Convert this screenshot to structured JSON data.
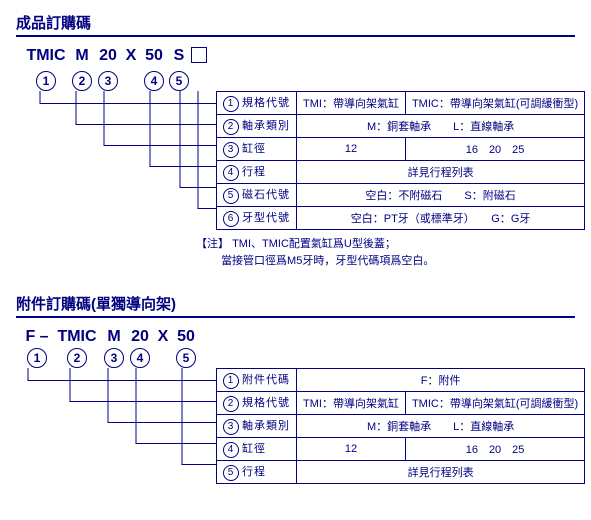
{
  "section1": {
    "title": "成品訂購碼",
    "code_tokens": [
      "TMIC",
      "M",
      "20",
      "X",
      "50",
      "S",
      "□"
    ],
    "circle_ids": [
      "1",
      "2",
      "3",
      "4",
      "5",
      "6"
    ],
    "rows": [
      {
        "n": "1",
        "label": "規格代號",
        "cells": [
          "TMI：帶導向架氣缸",
          "TMIC：帶導向架氣缸(可調緩衝型)"
        ]
      },
      {
        "n": "2",
        "label": "軸承類別",
        "cells": [
          "M：銅套軸承　　L：直線軸承"
        ]
      },
      {
        "n": "3",
        "label": "缸徑",
        "cells": [
          "12",
          "16　20　25"
        ]
      },
      {
        "n": "4",
        "label": "行程",
        "cells": [
          "詳見行程列表"
        ]
      },
      {
        "n": "5",
        "label": "磁石代號",
        "cells": [
          "空白：不附磁石　　S：附磁石"
        ]
      },
      {
        "n": "6",
        "label": "牙型代號",
        "cells": [
          "空白：PT牙（或標準牙）　　G：G牙"
        ]
      }
    ],
    "note_label": "【注】",
    "note_line1": "TMI、TMIC配置氣缸爲U型後蓋；",
    "note_line2": "當接管口徑爲M5牙時，牙型代碼項爲空白。"
  },
  "section2": {
    "title": "附件訂購碼(單獨導向架)",
    "code_tokens": [
      "F –",
      "TMIC",
      "M",
      "20",
      "X",
      "50"
    ],
    "circle_ids": [
      "1",
      "2",
      "3",
      "4",
      "5"
    ],
    "rows": [
      {
        "n": "1",
        "label": "附件代碼",
        "cells": [
          "F：附件"
        ]
      },
      {
        "n": "2",
        "label": "規格代號",
        "cells": [
          "TMI：帶導向架氣缸",
          "TMIC：帶導向架氣缸(可調緩衝型)"
        ]
      },
      {
        "n": "3",
        "label": "軸承類別",
        "cells": [
          "M：銅套軸承　　L：直線軸承"
        ]
      },
      {
        "n": "4",
        "label": "缸徑",
        "cells": [
          "12",
          "16　20　25"
        ]
      },
      {
        "n": "5",
        "label": "行程",
        "cells": [
          "詳見行程列表"
        ]
      }
    ]
  },
  "layout": {
    "tok_widths_s1": [
      48,
      24,
      28,
      18,
      28,
      22,
      18
    ],
    "circle_x_s1": [
      24,
      60,
      88,
      134,
      164,
      182
    ],
    "tok_widths_s2": [
      30,
      50,
      24,
      28,
      18,
      28
    ],
    "circle_x_s2": [
      12,
      54,
      92,
      120,
      166
    ],
    "stroke": "#000080"
  }
}
